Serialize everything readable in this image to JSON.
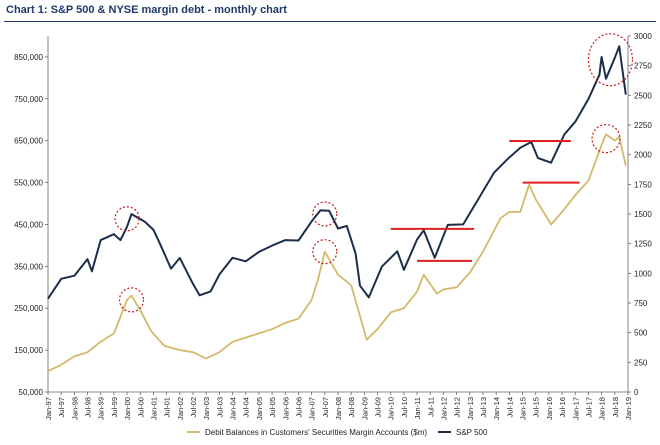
{
  "chart_data": {
    "type": "line",
    "title": "Chart 1: S&P 500 & NYSE margin debt - monthly chart",
    "left_axis": {
      "ylim": [
        50000,
        900000
      ],
      "ticks": [
        50000,
        150000,
        250000,
        350000,
        450000,
        550000,
        650000,
        750000,
        850000
      ],
      "tick_labels": [
        "50,000",
        "150,000",
        "250,000",
        "350,000",
        "450,000",
        "550,000",
        "650,000",
        "750,000",
        "850,000"
      ]
    },
    "right_axis": {
      "ylim": [
        0,
        3000
      ],
      "ticks": [
        0,
        250,
        500,
        750,
        1000,
        1250,
        1500,
        1750,
        2000,
        2250,
        2500,
        2750,
        3000
      ],
      "tick_labels": [
        "0",
        "250",
        "500",
        "750",
        "1000",
        "1250",
        "1500",
        "1750",
        "2000",
        "2250",
        "2500",
        "2750",
        "3000"
      ]
    },
    "x_axis": {
      "start": "1997-01",
      "end": "2019-01",
      "tick_labels": [
        "Jan-97",
        "Jul-97",
        "Jan-98",
        "Jul-98",
        "Jan-99",
        "Jul-99",
        "Jan-00",
        "Jul-00",
        "Jan-01",
        "Jul-01",
        "Jan-02",
        "Jul-02",
        "Jan-03",
        "Jul-03",
        "Jan-04",
        "Jul-04",
        "Jan-05",
        "Jul-05",
        "Jan-06",
        "Jul-06",
        "Jan-07",
        "Jul-07",
        "Jan-08",
        "Jul-08",
        "Jan-09",
        "Jul-09",
        "Jan-10",
        "Jul-10",
        "Jan-11",
        "Jul-11",
        "Jan-12",
        "Jul-12",
        "Jan-13",
        "Jul-13",
        "Jan-14",
        "Jul-14",
        "Jan-15",
        "Jul-15",
        "Jan-16",
        "Jul-16",
        "Jan-17",
        "Jul-17",
        "Jan-18",
        "Jul-18",
        "Jan-19"
      ]
    },
    "series": [
      {
        "name": "Debit Balances in Customers' Securities Margin Accounts ($m)",
        "axis": "left",
        "color": "#d4b96a",
        "points": [
          [
            "1997-01",
            100000
          ],
          [
            "1997-07",
            115000
          ],
          [
            "1998-01",
            135000
          ],
          [
            "1998-07",
            145000
          ],
          [
            "1999-01",
            170000
          ],
          [
            "1999-07",
            190000
          ],
          [
            "2000-01",
            270000
          ],
          [
            "2000-03",
            280000
          ],
          [
            "2000-07",
            245000
          ],
          [
            "2000-12",
            195000
          ],
          [
            "2001-06",
            160000
          ],
          [
            "2002-01",
            150000
          ],
          [
            "2002-07",
            145000
          ],
          [
            "2003-01",
            130000
          ],
          [
            "2003-07",
            145000
          ],
          [
            "2004-01",
            170000
          ],
          [
            "2004-07",
            180000
          ],
          [
            "2005-01",
            190000
          ],
          [
            "2005-07",
            200000
          ],
          [
            "2006-01",
            215000
          ],
          [
            "2006-07",
            225000
          ],
          [
            "2007-01",
            270000
          ],
          [
            "2007-04",
            320000
          ],
          [
            "2007-07",
            385000
          ],
          [
            "2008-01",
            330000
          ],
          [
            "2008-07",
            305000
          ],
          [
            "2008-10",
            250000
          ],
          [
            "2009-02",
            175000
          ],
          [
            "2009-07",
            200000
          ],
          [
            "2010-01",
            240000
          ],
          [
            "2010-07",
            250000
          ],
          [
            "2011-01",
            290000
          ],
          [
            "2011-04",
            330000
          ],
          [
            "2011-10",
            285000
          ],
          [
            "2012-01",
            295000
          ],
          [
            "2012-07",
            300000
          ],
          [
            "2013-01",
            335000
          ],
          [
            "2013-07",
            385000
          ],
          [
            "2014-01",
            445000
          ],
          [
            "2014-03",
            465000
          ],
          [
            "2014-07",
            480000
          ],
          [
            "2014-12",
            480000
          ],
          [
            "2015-04",
            545000
          ],
          [
            "2015-07",
            510000
          ],
          [
            "2016-02",
            450000
          ],
          [
            "2016-07",
            480000
          ],
          [
            "2017-01",
            520000
          ],
          [
            "2017-07",
            555000
          ],
          [
            "2018-01",
            640000
          ],
          [
            "2018-03",
            665000
          ],
          [
            "2018-07",
            650000
          ],
          [
            "2018-09",
            660000
          ],
          [
            "2018-12",
            590000
          ]
        ]
      },
      {
        "name": "S&P 500",
        "axis": "right",
        "color": "#1c2e4a",
        "points": [
          [
            "1997-01",
            786
          ],
          [
            "1997-07",
            954
          ],
          [
            "1998-01",
            980
          ],
          [
            "1998-07",
            1120
          ],
          [
            "1998-09",
            1017
          ],
          [
            "1999-01",
            1280
          ],
          [
            "1999-07",
            1330
          ],
          [
            "1999-10",
            1280
          ],
          [
            "2000-01",
            1394
          ],
          [
            "2000-03",
            1499
          ],
          [
            "2000-09",
            1436
          ],
          [
            "2001-01",
            1366
          ],
          [
            "2001-04",
            1249
          ],
          [
            "2001-09",
            1040
          ],
          [
            "2002-01",
            1130
          ],
          [
            "2002-07",
            911
          ],
          [
            "2002-10",
            815
          ],
          [
            "2003-03",
            848
          ],
          [
            "2003-07",
            990
          ],
          [
            "2004-01",
            1131
          ],
          [
            "2004-07",
            1101
          ],
          [
            "2005-01",
            1181
          ],
          [
            "2005-07",
            1234
          ],
          [
            "2006-01",
            1280
          ],
          [
            "2006-07",
            1277
          ],
          [
            "2007-01",
            1438
          ],
          [
            "2007-05",
            1530
          ],
          [
            "2007-09",
            1527
          ],
          [
            "2008-01",
            1378
          ],
          [
            "2008-05",
            1400
          ],
          [
            "2008-09",
            1166
          ],
          [
            "2008-11",
            896
          ],
          [
            "2009-03",
            797
          ],
          [
            "2009-09",
            1057
          ],
          [
            "2010-04",
            1186
          ],
          [
            "2010-07",
            1030
          ],
          [
            "2011-01",
            1286
          ],
          [
            "2011-04",
            1363
          ],
          [
            "2011-09",
            1131
          ],
          [
            "2012-03",
            1408
          ],
          [
            "2012-10",
            1412
          ],
          [
            "2013-05",
            1630
          ],
          [
            "2013-12",
            1848
          ],
          [
            "2014-06",
            1960
          ],
          [
            "2014-12",
            2058
          ],
          [
            "2015-05",
            2107
          ],
          [
            "2015-08",
            1972
          ],
          [
            "2016-02",
            1932
          ],
          [
            "2016-08",
            2170
          ],
          [
            "2017-01",
            2278
          ],
          [
            "2017-07",
            2470
          ],
          [
            "2017-12",
            2673
          ],
          [
            "2018-01",
            2823
          ],
          [
            "2018-03",
            2640
          ],
          [
            "2018-07",
            2816
          ],
          [
            "2018-09",
            2913
          ],
          [
            "2018-12",
            2506
          ]
        ]
      }
    ],
    "horizontal_lines": [
      {
        "axis": "right",
        "value": 1375,
        "from": "2010-01",
        "to": "2013-03"
      },
      {
        "axis": "left",
        "value": 363000,
        "from": "2011-01",
        "to": "2013-02"
      },
      {
        "axis": "right",
        "value": 2115,
        "from": "2014-07",
        "to": "2016-11"
      },
      {
        "axis": "left",
        "value": 550000,
        "from": "2015-01",
        "to": "2017-03"
      }
    ],
    "highlight_circles": [
      {
        "axis": "right",
        "x": "2000-01",
        "y": 1460,
        "size": "small"
      },
      {
        "axis": "left",
        "x": "2000-03",
        "y": 270000,
        "size": "small"
      },
      {
        "axis": "right",
        "x": "2007-07",
        "y": 1500,
        "size": "small"
      },
      {
        "axis": "left",
        "x": "2007-07",
        "y": 385000,
        "size": "small"
      },
      {
        "axis": "right",
        "x": "2018-05",
        "y": 2800,
        "size": "large"
      },
      {
        "axis": "left",
        "x": "2018-03",
        "y": 655000,
        "size": "medium"
      }
    ],
    "colors": {
      "highlight_line": "#e02020",
      "highlight_circle": "#d01818",
      "axis": "#666666"
    },
    "legend_placement": "bottom-center"
  }
}
